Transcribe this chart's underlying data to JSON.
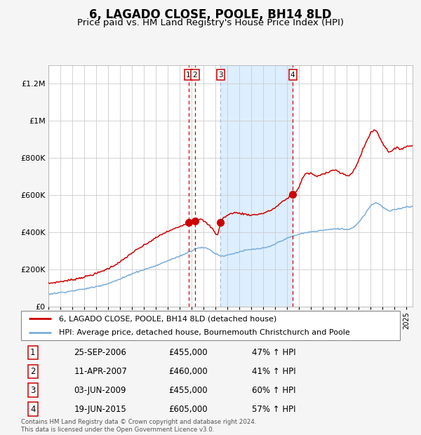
{
  "title": "6, LAGADO CLOSE, POOLE, BH14 8LD",
  "subtitle": "Price paid vs. HM Land Registry's House Price Index (HPI)",
  "title_fontsize": 12,
  "subtitle_fontsize": 9.5,
  "background_color": "#f5f5f5",
  "plot_bg_color": "#ffffff",
  "grid_color": "#cccccc",
  "legend_line1": "6, LAGADO CLOSE, POOLE, BH14 8LD (detached house)",
  "legend_line2": "HPI: Average price, detached house, Bournemouth Christchurch and Poole",
  "footer": "Contains HM Land Registry data © Crown copyright and database right 2024.\nThis data is licensed under the Open Government Licence v3.0.",
  "transactions": [
    {
      "num": 1,
      "date": "25-SEP-2006",
      "price": 455000,
      "pct": "47%",
      "x_year": 2006.73
    },
    {
      "num": 2,
      "date": "11-APR-2007",
      "price": 460000,
      "pct": "41%",
      "x_year": 2007.28
    },
    {
      "num": 3,
      "date": "03-JUN-2009",
      "price": 455000,
      "pct": "60%",
      "x_year": 2009.42
    },
    {
      "num": 4,
      "date": "19-JUN-2015",
      "price": 605000,
      "pct": "57%",
      "x_year": 2015.46
    }
  ],
  "xmin": 1995.0,
  "xmax": 2025.5,
  "ymin": 0,
  "ymax": 1300000,
  "yticks": [
    0,
    200000,
    400000,
    600000,
    800000,
    1000000,
    1200000
  ],
  "ytick_labels": [
    "£0",
    "£200K",
    "£400K",
    "£600K",
    "£800K",
    "£1M",
    "£1.2M"
  ],
  "red_line_color": "#cc0000",
  "blue_line_color": "#7aaddb",
  "shade_color": "#ddeeff",
  "vline_color_red": "#cc0000",
  "vline_color_blue": "#aabbdd",
  "box_color": "#cc0000",
  "anchors_red": [
    [
      1995.0,
      125000
    ],
    [
      1996.0,
      135000
    ],
    [
      1997.0,
      145000
    ],
    [
      1998.0,
      160000
    ],
    [
      1999.0,
      178000
    ],
    [
      2000.0,
      205000
    ],
    [
      2001.0,
      240000
    ],
    [
      2002.0,
      290000
    ],
    [
      2003.0,
      330000
    ],
    [
      2004.0,
      370000
    ],
    [
      2004.5,
      390000
    ],
    [
      2005.0,
      405000
    ],
    [
      2005.5,
      418000
    ],
    [
      2006.0,
      432000
    ],
    [
      2006.5,
      448000
    ],
    [
      2006.73,
      455000
    ],
    [
      2007.0,
      458000
    ],
    [
      2007.28,
      460000
    ],
    [
      2007.5,
      468000
    ],
    [
      2007.7,
      472000
    ],
    [
      2008.0,
      462000
    ],
    [
      2008.5,
      435000
    ],
    [
      2008.8,
      415000
    ],
    [
      2009.0,
      393000
    ],
    [
      2009.2,
      388000
    ],
    [
      2009.42,
      455000
    ],
    [
      2009.6,
      475000
    ],
    [
      2010.0,
      492000
    ],
    [
      2010.5,
      507000
    ],
    [
      2011.0,
      503000
    ],
    [
      2011.5,
      498000
    ],
    [
      2012.0,
      493000
    ],
    [
      2012.5,
      497000
    ],
    [
      2013.0,
      503000
    ],
    [
      2013.5,
      515000
    ],
    [
      2014.0,
      533000
    ],
    [
      2014.5,
      560000
    ],
    [
      2015.0,
      583000
    ],
    [
      2015.46,
      605000
    ],
    [
      2015.8,
      625000
    ],
    [
      2016.0,
      645000
    ],
    [
      2016.3,
      695000
    ],
    [
      2016.5,
      715000
    ],
    [
      2017.0,
      718000
    ],
    [
      2017.5,
      700000
    ],
    [
      2018.0,
      715000
    ],
    [
      2018.5,
      728000
    ],
    [
      2019.0,
      738000
    ],
    [
      2019.5,
      718000
    ],
    [
      2020.0,
      705000
    ],
    [
      2020.3,
      710000
    ],
    [
      2020.5,
      725000
    ],
    [
      2021.0,
      790000
    ],
    [
      2021.3,
      840000
    ],
    [
      2021.5,
      870000
    ],
    [
      2021.8,
      910000
    ],
    [
      2022.0,
      940000
    ],
    [
      2022.3,
      950000
    ],
    [
      2022.5,
      945000
    ],
    [
      2022.8,
      905000
    ],
    [
      2023.0,
      880000
    ],
    [
      2023.3,
      850000
    ],
    [
      2023.5,
      835000
    ],
    [
      2023.8,
      840000
    ],
    [
      2024.0,
      850000
    ],
    [
      2024.3,
      855000
    ],
    [
      2024.5,
      848000
    ],
    [
      2024.8,
      858000
    ],
    [
      2025.0,
      862000
    ],
    [
      2025.5,
      868000
    ]
  ],
  "anchors_blue": [
    [
      1995.0,
      68000
    ],
    [
      1996.0,
      76000
    ],
    [
      1997.0,
      85000
    ],
    [
      1998.0,
      95000
    ],
    [
      1999.0,
      108000
    ],
    [
      2000.0,
      125000
    ],
    [
      2001.0,
      148000
    ],
    [
      2002.0,
      178000
    ],
    [
      2003.0,
      200000
    ],
    [
      2004.0,
      220000
    ],
    [
      2005.0,
      248000
    ],
    [
      2006.0,
      272000
    ],
    [
      2007.0,
      302000
    ],
    [
      2007.5,
      318000
    ],
    [
      2008.0,
      318000
    ],
    [
      2008.5,
      308000
    ],
    [
      2009.0,
      285000
    ],
    [
      2009.5,
      272000
    ],
    [
      2010.0,
      278000
    ],
    [
      2010.5,
      286000
    ],
    [
      2011.0,
      296000
    ],
    [
      2011.5,
      303000
    ],
    [
      2012.0,
      308000
    ],
    [
      2012.5,
      311000
    ],
    [
      2013.0,
      315000
    ],
    [
      2013.5,
      322000
    ],
    [
      2014.0,
      338000
    ],
    [
      2014.5,
      355000
    ],
    [
      2015.0,
      368000
    ],
    [
      2015.5,
      380000
    ],
    [
      2016.0,
      390000
    ],
    [
      2016.5,
      398000
    ],
    [
      2017.0,
      403000
    ],
    [
      2017.5,
      407000
    ],
    [
      2018.0,
      412000
    ],
    [
      2018.5,
      415000
    ],
    [
      2019.0,
      418000
    ],
    [
      2019.5,
      420000
    ],
    [
      2020.0,
      415000
    ],
    [
      2020.5,
      425000
    ],
    [
      2021.0,
      455000
    ],
    [
      2021.5,
      498000
    ],
    [
      2022.0,
      545000
    ],
    [
      2022.3,
      558000
    ],
    [
      2022.5,
      560000
    ],
    [
      2022.8,
      548000
    ],
    [
      2023.0,
      535000
    ],
    [
      2023.3,
      523000
    ],
    [
      2023.5,
      515000
    ],
    [
      2023.8,
      518000
    ],
    [
      2024.0,
      523000
    ],
    [
      2024.5,
      530000
    ],
    [
      2025.0,
      538000
    ],
    [
      2025.5,
      540000
    ]
  ]
}
